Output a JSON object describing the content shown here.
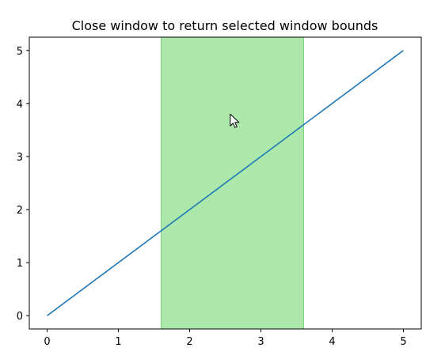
{
  "window": {
    "title": "Close window to return selected window bounds"
  },
  "colors": {
    "line": "#1f77b4",
    "span_fill": "#90e090",
    "span_edge": "#7fd47f",
    "axes": "#000000",
    "background": "#ffffff"
  },
  "cursor": {
    "icon": "mouse-pointer-icon"
  },
  "chart_data": {
    "type": "line",
    "title": "Close window to return selected window bounds",
    "xlabel": "",
    "ylabel": "",
    "xlim": [
      -0.25,
      5.25
    ],
    "ylim": [
      -0.25,
      5.25
    ],
    "xticks": [
      0,
      1,
      2,
      3,
      4,
      5
    ],
    "yticks": [
      0,
      1,
      2,
      3,
      4,
      5
    ],
    "grid": false,
    "series": [
      {
        "x": [
          0,
          5
        ],
        "y": [
          0,
          5
        ]
      }
    ],
    "selected_span": {
      "xmin": 1.6,
      "xmax": 3.6
    },
    "cursor_position": {
      "x": 2.57,
      "y": 3.8
    }
  }
}
